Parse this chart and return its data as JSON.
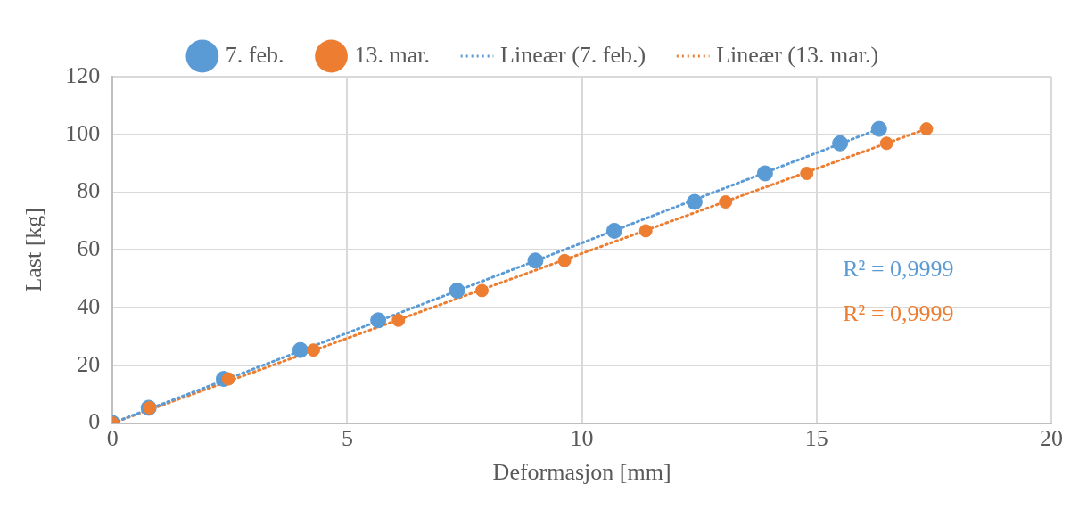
{
  "chart_data": {
    "type": "scatter",
    "xlabel": "Deformasjon [mm]",
    "ylabel": "Last [kg]",
    "xlim": [
      0,
      20
    ],
    "xticks": [
      0,
      5,
      10,
      15,
      20
    ],
    "ylim": [
      0,
      120
    ],
    "yticks": [
      0,
      20,
      40,
      60,
      80,
      100,
      120
    ],
    "grid": true,
    "legend": "top",
    "marker": "circle",
    "series": [
      {
        "name": "7. feb.",
        "color": "#5b9bd5",
        "x": [
          0,
          0.77,
          2.37,
          4.0,
          5.66,
          7.34,
          9.01,
          10.69,
          12.4,
          13.9,
          15.5,
          16.33
        ],
        "values": [
          0,
          5.3,
          15.3,
          25.3,
          35.6,
          45.9,
          56.3,
          66.6,
          76.6,
          86.5,
          96.9,
          101.9
        ]
      },
      {
        "name": "13. mar.",
        "color": "#ed7d31",
        "x": [
          0,
          0.79,
          2.47,
          4.28,
          6.09,
          7.87,
          9.63,
          11.36,
          13.06,
          14.79,
          16.49,
          17.34
        ],
        "values": [
          0,
          5.3,
          15.3,
          25.3,
          35.6,
          45.9,
          56.3,
          66.6,
          76.6,
          86.5,
          96.9,
          101.9
        ]
      },
      {
        "name": "Lineær (7. feb.)",
        "type": "line",
        "line_style": "dotted",
        "marker": "none",
        "color": "#5b9bd5",
        "x": [
          0,
          16.33
        ],
        "values": [
          0,
          101.9
        ]
      },
      {
        "name": "Lineær (13. mar.)",
        "type": "line",
        "line_style": "dotted",
        "marker": "none",
        "color": "#ed7d31",
        "x": [
          0,
          17.34
        ],
        "values": [
          0,
          101.9
        ]
      }
    ],
    "annotations": [
      "R² = 0,9999",
      "R² = 0,9999"
    ]
  }
}
